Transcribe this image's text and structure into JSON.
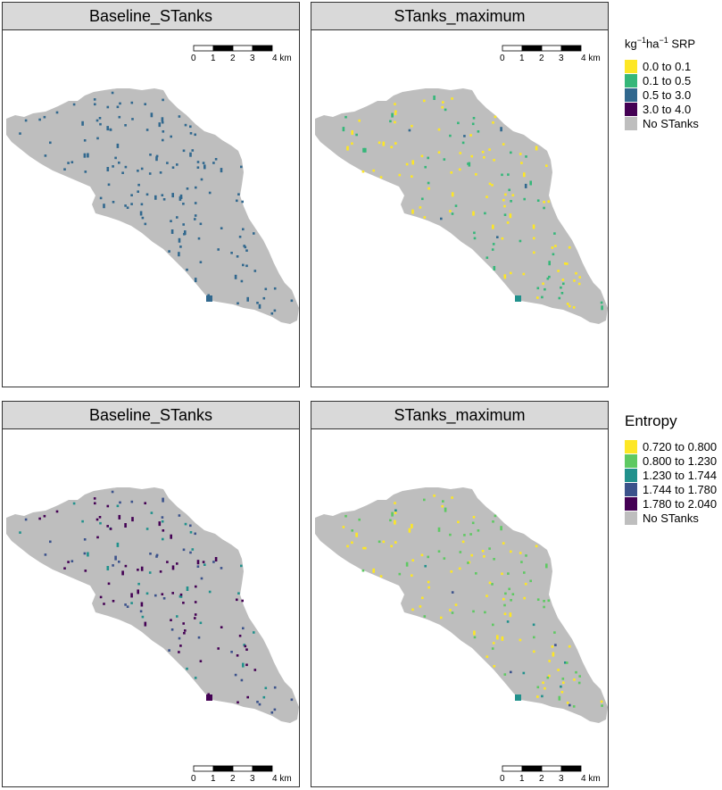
{
  "panels": [
    {
      "title": "Baseline_STanks",
      "scheme": "base_srp",
      "scalebar": "top"
    },
    {
      "title": "STanks_maximum",
      "scheme": "max_srp",
      "scalebar": "top"
    },
    {
      "title": "Baseline_STanks",
      "scheme": "base_ent",
      "scalebar": "bottom"
    },
    {
      "title": "STanks_maximum",
      "scheme": "max_ent",
      "scalebar": "bottom"
    }
  ],
  "scalebar": {
    "ticks": [
      "0",
      "1",
      "2",
      "3",
      "4 km"
    ]
  },
  "legend_srp": {
    "title_base": "kg",
    "sup1": "−1",
    "mid": "ha",
    "sup2": "−1",
    "title_end": " SRP",
    "items": [
      {
        "label": "0.0 to 0.1",
        "color": "#fde725"
      },
      {
        "label": "0.1 to 0.5",
        "color": "#35b779"
      },
      {
        "label": "0.5 to 3.0",
        "color": "#31688e"
      },
      {
        "label": "3.0 to 4.0",
        "color": "#440154"
      },
      {
        "label": "No STanks",
        "color": "#bebebe"
      }
    ]
  },
  "legend_entropy": {
    "title": "Entropy",
    "items": [
      {
        "label": "0.720 to 0.800",
        "color": "#fde725"
      },
      {
        "label": "0.800 to 1.230",
        "color": "#5ec962"
      },
      {
        "label": "1.230 to 1.744",
        "color": "#21918c"
      },
      {
        "label": "1.744 to 1.780",
        "color": "#3b528b"
      },
      {
        "label": "1.780 to 2.040",
        "color": "#440154"
      },
      {
        "label": "No STanks",
        "color": "#bebebe"
      }
    ]
  }
}
